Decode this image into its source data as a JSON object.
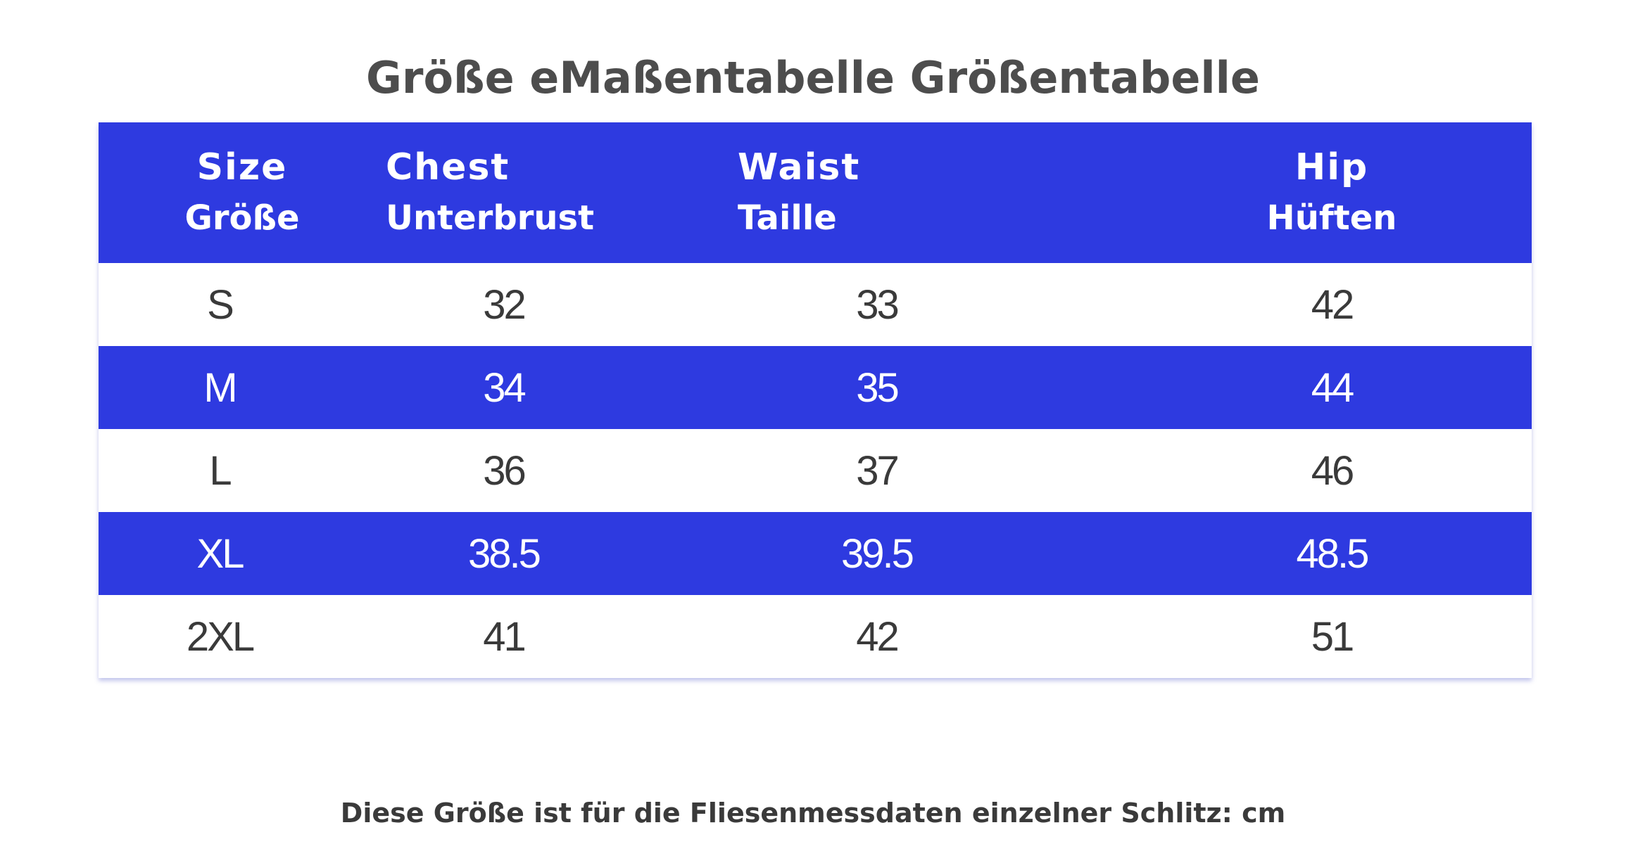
{
  "title": "Größe eMaßentabelle Größentabelle",
  "table": {
    "headers": [
      {
        "en": "Size",
        "de": "Größe"
      },
      {
        "en": "Chest",
        "de": "Unterbrust"
      },
      {
        "en": "Waist",
        "de": "Taille"
      },
      {
        "en": "Hip",
        "de": "Hüften"
      }
    ],
    "rows": [
      [
        "S",
        "32",
        "33",
        "42"
      ],
      [
        "M",
        "34",
        "35",
        "44"
      ],
      [
        "L",
        "36",
        "37",
        "46"
      ],
      [
        "XL",
        "38.5",
        "39.5",
        "48.5"
      ],
      [
        "2XL",
        "41",
        "42",
        "51"
      ]
    ]
  },
  "footnote": "Diese Größe ist für die Fliesenmessdaten einzelner Schlitz: cm",
  "colors": {
    "header_bg": "#2e3ae0",
    "stripe_bg": "#2e3ae0",
    "title_text": "#4d4d4d",
    "body_text": "#3a3a3a"
  }
}
